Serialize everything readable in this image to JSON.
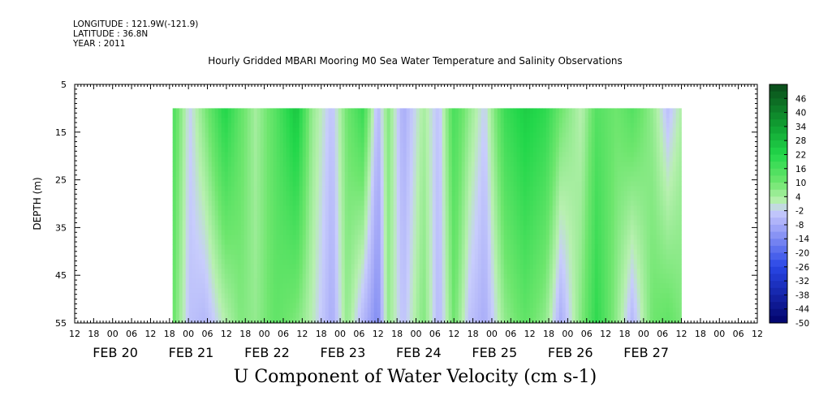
{
  "header": {
    "longitude": "LONGITUDE : 121.9W(-121.9)",
    "latitude": "LATITUDE : 36.8N",
    "year": "YEAR : 2011"
  },
  "chart_data": {
    "type": "heatmap",
    "title": "Hourly Gridded MBARI Mooring M0 Sea Water Temperature and Salinity Observations",
    "variable_label": "U Component of Water Velocity (cm s-1)",
    "ylabel": "DEPTH (m)",
    "ylim": [
      5,
      55
    ],
    "y_inverted": true,
    "y_ticks": [
      5,
      15,
      25,
      35,
      45,
      55
    ],
    "data_depth_range": [
      10,
      55
    ],
    "x_hour_ticks": [
      "12",
      "18",
      "00",
      "06",
      "12",
      "18",
      "00",
      "06",
      "12",
      "18",
      "00",
      "06",
      "12",
      "18",
      "00",
      "06",
      "12",
      "18",
      "00",
      "06",
      "12",
      "18",
      "00",
      "06",
      "12",
      "18",
      "00",
      "06",
      "12",
      "18",
      "00",
      "06",
      "12",
      "18",
      "00",
      "06",
      "12"
    ],
    "x_day_labels": [
      "FEB 20",
      "FEB 21",
      "FEB 22",
      "FEB 23",
      "FEB 24",
      "FEB 25",
      "FEB 26",
      "FEB 27"
    ],
    "data_time_start": "FEB 20 19:00",
    "data_time_end": "FEB 27 12:00",
    "colorbar_levels": [
      "46",
      "40",
      "34",
      "28",
      "22",
      "16",
      "10",
      "4",
      "-2",
      "-8",
      "-14",
      "-20",
      "-26",
      "-32",
      "-38",
      "-44",
      "-50"
    ],
    "colorbar_range": [
      -50,
      52
    ],
    "colorbar_step": 3,
    "column_profiles": [
      {
        "t": 0.0,
        "top": 14,
        "bottom": 10
      },
      {
        "t": 0.03,
        "top": -2,
        "bottom": -4
      },
      {
        "t": 0.06,
        "top": 8,
        "bottom": -6
      },
      {
        "t": 0.1,
        "top": 22,
        "bottom": 2
      },
      {
        "t": 0.13,
        "top": 12,
        "bottom": 8
      },
      {
        "t": 0.16,
        "top": 4,
        "bottom": 6
      },
      {
        "t": 0.2,
        "top": 14,
        "bottom": 12
      },
      {
        "t": 0.24,
        "top": 26,
        "bottom": 8
      },
      {
        "t": 0.27,
        "top": 6,
        "bottom": 2
      },
      {
        "t": 0.31,
        "top": -4,
        "bottom": -8
      },
      {
        "t": 0.34,
        "top": 10,
        "bottom": 6
      },
      {
        "t": 0.37,
        "top": 18,
        "bottom": -6
      },
      {
        "t": 0.4,
        "top": -6,
        "bottom": -14
      },
      {
        "t": 0.42,
        "top": 8,
        "bottom": 6
      },
      {
        "t": 0.45,
        "top": -8,
        "bottom": -4
      },
      {
        "t": 0.49,
        "top": 4,
        "bottom": 8
      },
      {
        "t": 0.52,
        "top": -4,
        "bottom": -6
      },
      {
        "t": 0.55,
        "top": 16,
        "bottom": 10
      },
      {
        "t": 0.58,
        "top": 6,
        "bottom": -4
      },
      {
        "t": 0.61,
        "top": -2,
        "bottom": -8
      },
      {
        "t": 0.65,
        "top": 18,
        "bottom": 6
      },
      {
        "t": 0.69,
        "top": 24,
        "bottom": 12
      },
      {
        "t": 0.73,
        "top": 20,
        "bottom": 6
      },
      {
        "t": 0.76,
        "top": 10,
        "bottom": -8
      },
      {
        "t": 0.8,
        "top": 2,
        "bottom": 8
      },
      {
        "t": 0.83,
        "top": 14,
        "bottom": 20
      },
      {
        "t": 0.87,
        "top": 10,
        "bottom": 6
      },
      {
        "t": 0.9,
        "top": 14,
        "bottom": -6
      },
      {
        "t": 0.94,
        "top": 6,
        "bottom": 10
      },
      {
        "t": 0.97,
        "top": -4,
        "bottom": 12
      },
      {
        "t": 1.0,
        "top": 4,
        "bottom": 8
      }
    ],
    "colors": {
      "strong_positive": "#0b4a1a",
      "positive": "#22d74a",
      "zero": "#b8f0b0",
      "negative": "#a8acf8",
      "strong_negative": "#02036a"
    }
  }
}
